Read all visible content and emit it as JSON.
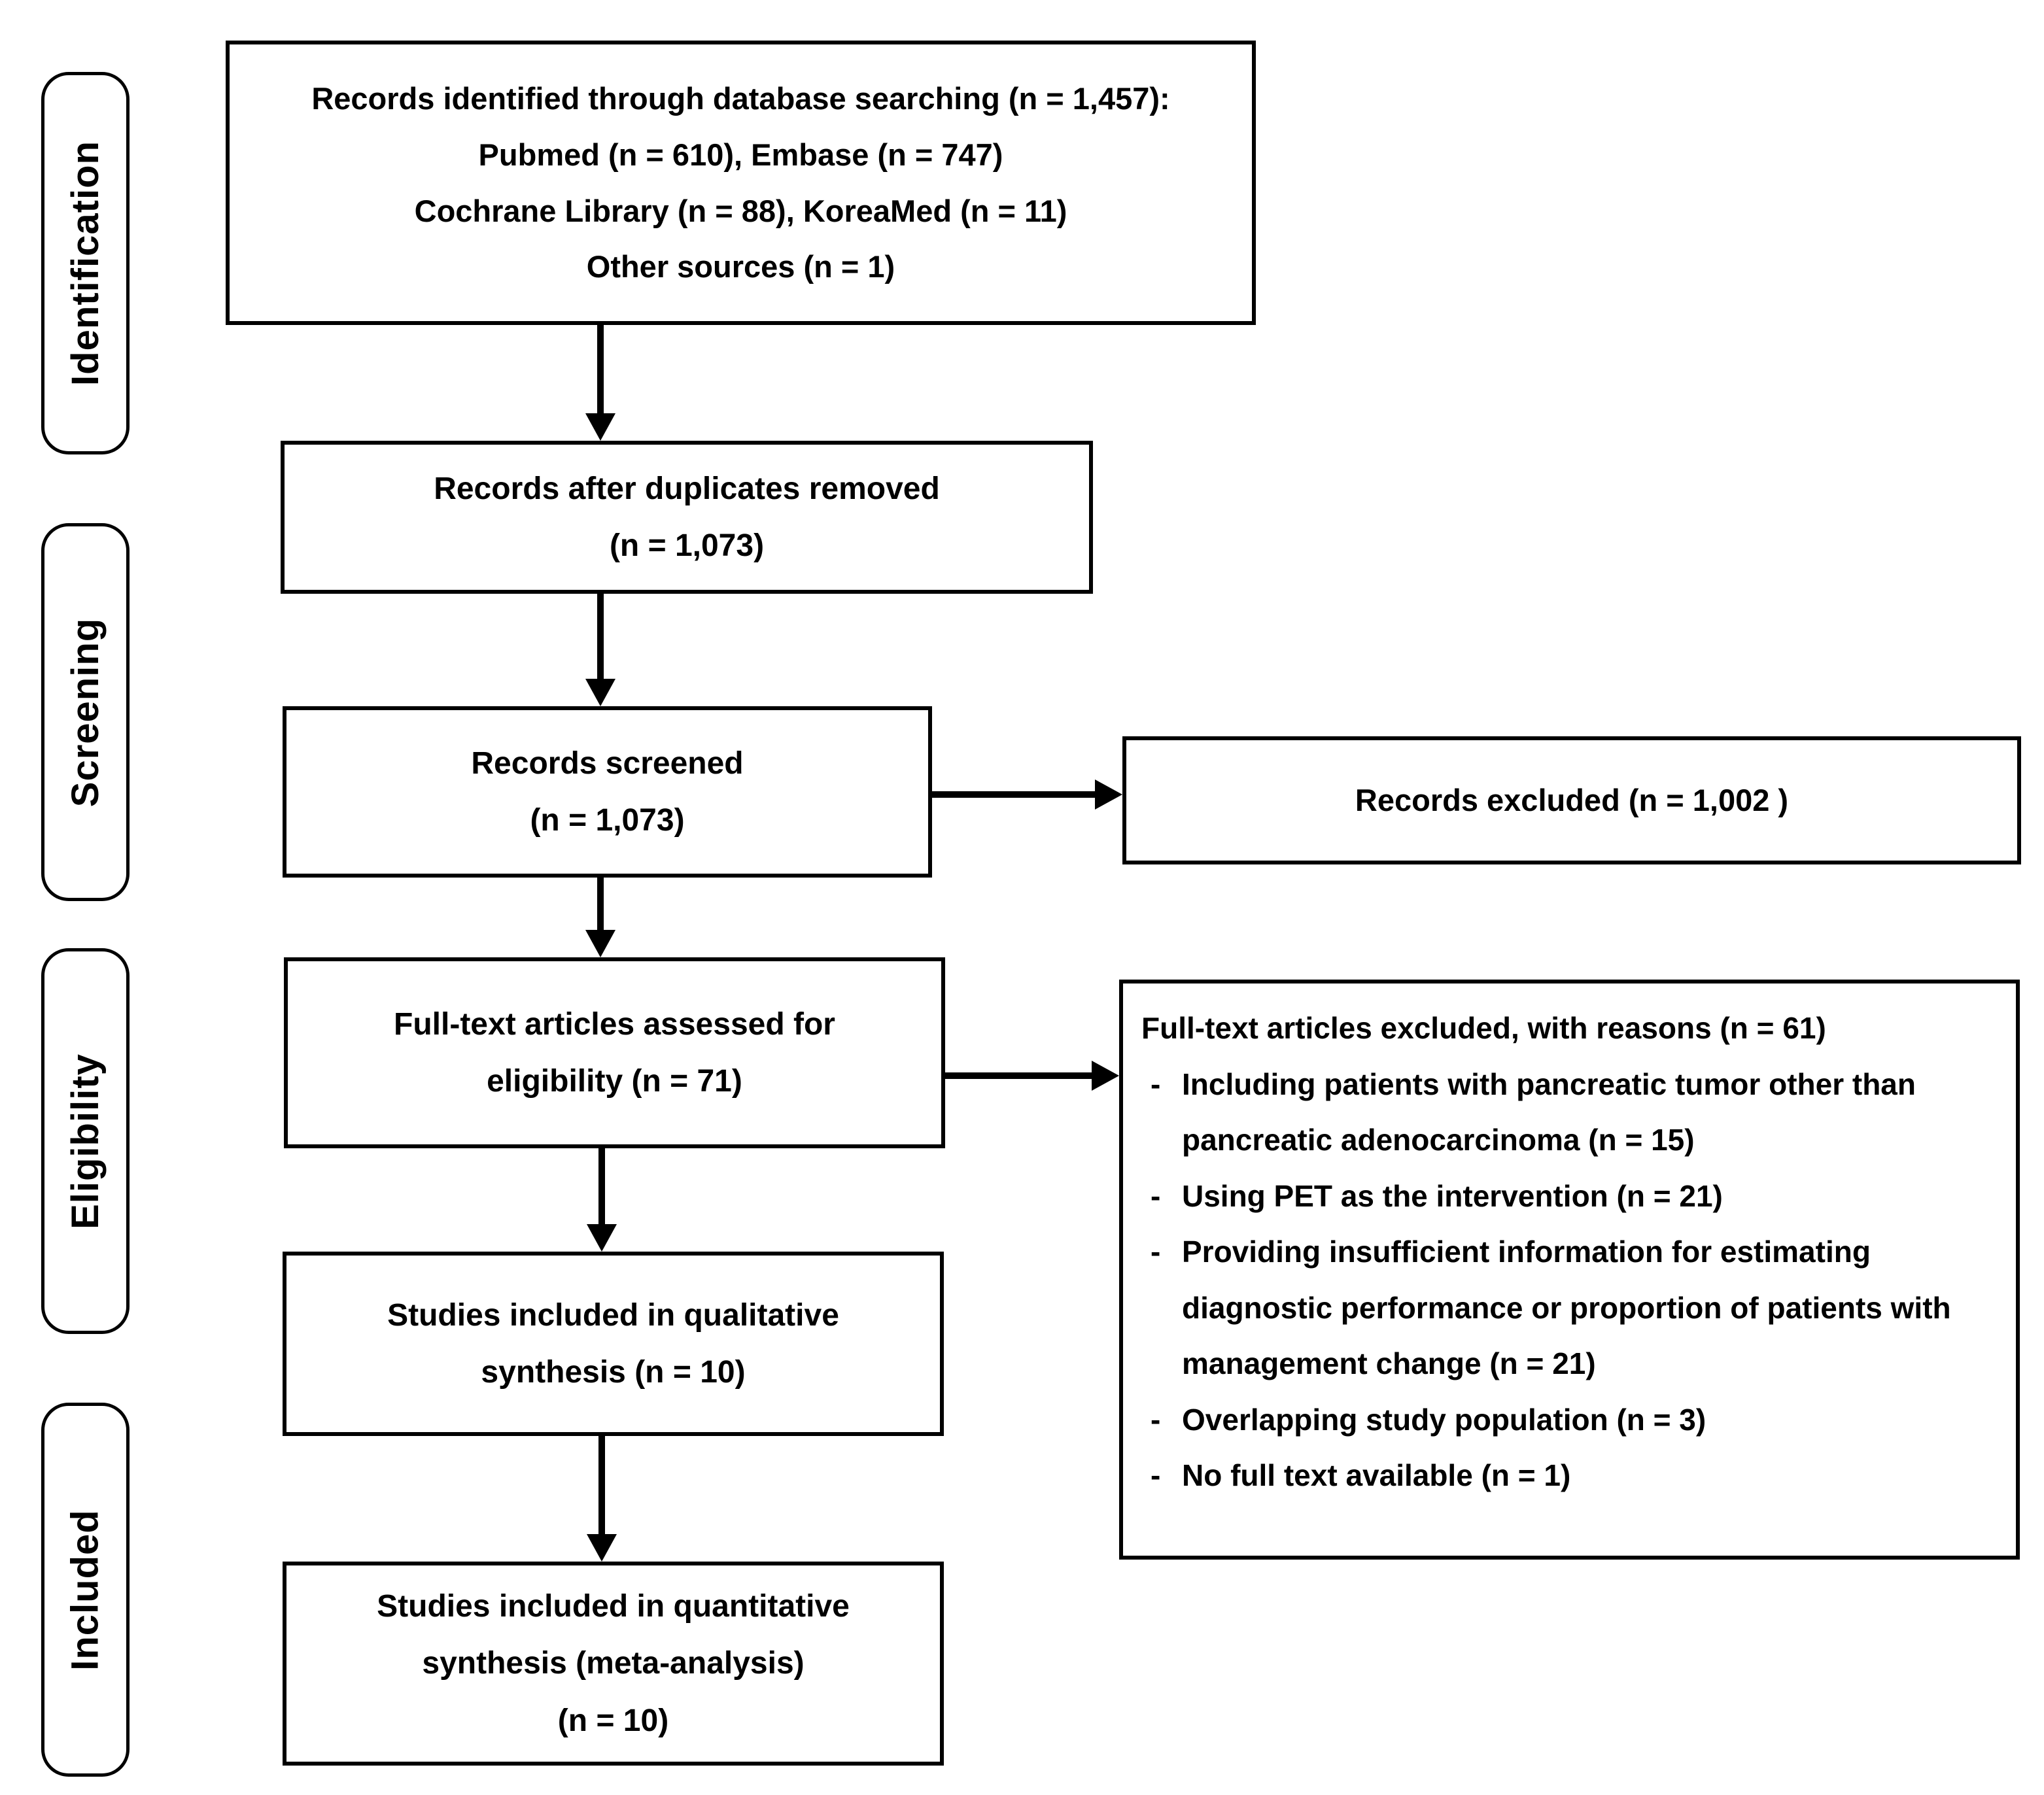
{
  "diagram": {
    "title_semantic": "PRISMA study selection flow diagram",
    "stages": [
      "Identification",
      "Screening",
      "Eligibility",
      "Included"
    ],
    "boxes": {
      "identified": "Records identified through database searching (n = 1,457):\nPubmed (n = 610), Embase (n = 747)\nCochrane Library (n = 88), KoreaMed (n = 11)\nOther sources (n = 1)",
      "dedup": "Records after duplicates removed\n(n = 1,073)",
      "screened": "Records screened\n(n = 1,073)",
      "fulltext": "Full-text articles assessed for\neligibility (n = 71)",
      "qualitative": "Studies included in qualitative\nsynthesis (n = 10)",
      "quantitative": "Studies included in quantitative\nsynthesis (meta-analysis)\n(n = 10)"
    },
    "exclusions": {
      "records_excluded": "Records excluded (n = 1,002 )",
      "fulltext_header": "Full-text articles excluded, with reasons (n = 61)",
      "dash": "-",
      "reasons": [
        "Including patients with pancreatic tumor other than pancreatic adenocarcinoma (n = 15)",
        "Using PET as the intervention (n = 21)",
        "Providing insufficient information for estimating diagnostic performance or proportion of patients with management change (n = 21)",
        "Overlapping study population (n = 3)",
        "No full text available (n = 1)"
      ]
    }
  }
}
